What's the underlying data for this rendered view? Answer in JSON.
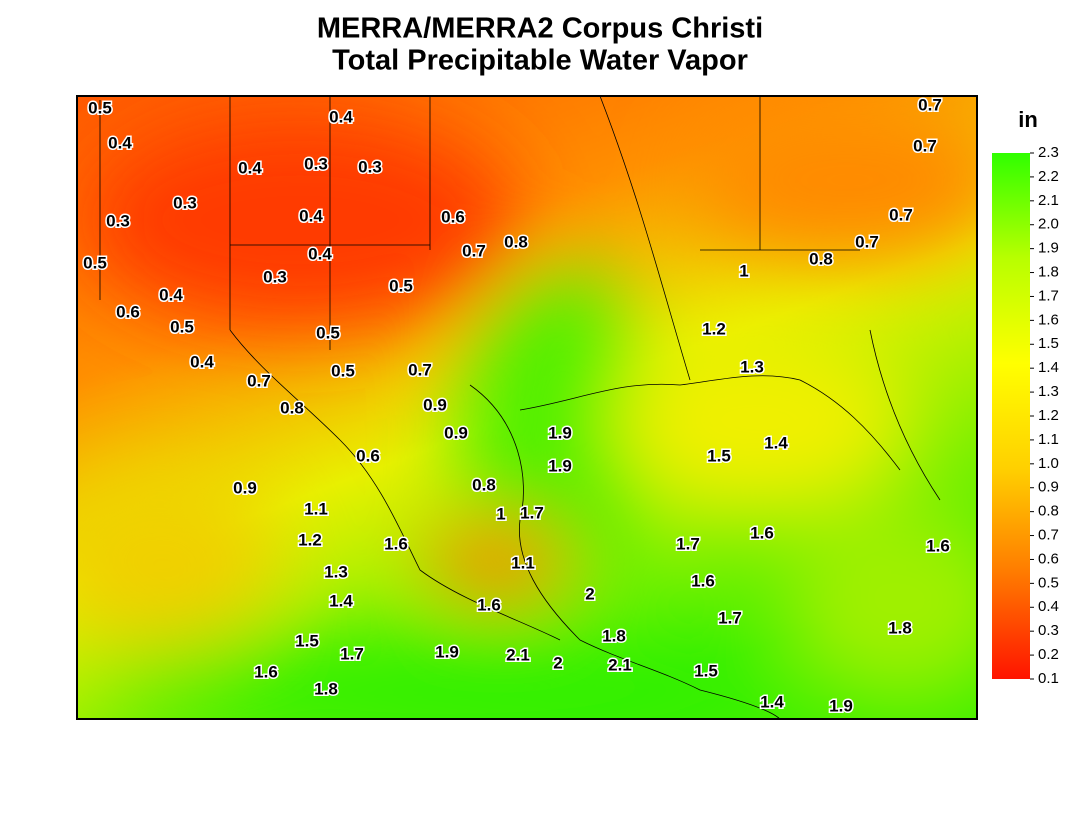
{
  "title_lines": [
    "MERRA/MERRA2 Corpus Christi",
    "Total Precipitable Water Vapor"
  ],
  "colorbar": {
    "unit": "in",
    "range": [
      0.1,
      2.3
    ],
    "colors": [
      "#ff1400",
      "#ff7a00",
      "#ffd000",
      "#ffff00",
      "#b8ff00",
      "#30ff00"
    ],
    "ticks": [
      0.1,
      0.2,
      0.3,
      0.4,
      0.5,
      0.6,
      0.7,
      0.8,
      0.9,
      {
        "value": 1,
        "label": "1.0"
      },
      1.1,
      1.2,
      1.3,
      1.4,
      1.5,
      1.6,
      1.7,
      1.8,
      1.9,
      {
        "value": 2,
        "label": "2.0"
      },
      2.1,
      2.2,
      2.3
    ]
  },
  "contour_labels": [
    0.5,
    0.4,
    0.7,
    0.4,
    0.4,
    0.3,
    0.3,
    0.7,
    0.3,
    0.4,
    0.6,
    0.7,
    0.3,
    0.4,
    0.7,
    0.8,
    0.7,
    0.5,
    0.3,
    1,
    0.8,
    0.4,
    0.5,
    0.6,
    0.5,
    0.5,
    1.2,
    0.4,
    0.5,
    0.7,
    1.3,
    0.7,
    0.8,
    0.9,
    0.9,
    1.9,
    1.4,
    1.5,
    0.6,
    1.9,
    0.9,
    0.8,
    1.1,
    1,
    1.7,
    1.6,
    1.7,
    1.6,
    1.2,
    1.6,
    1.1,
    1.3,
    1.6,
    2,
    1.4,
    1.6,
    1.7,
    1.8,
    1.8,
    1.5,
    1.7,
    1.9,
    2.1,
    2,
    2.1,
    1.5,
    1.6,
    1.8,
    1.4,
    1.9
  ]
}
